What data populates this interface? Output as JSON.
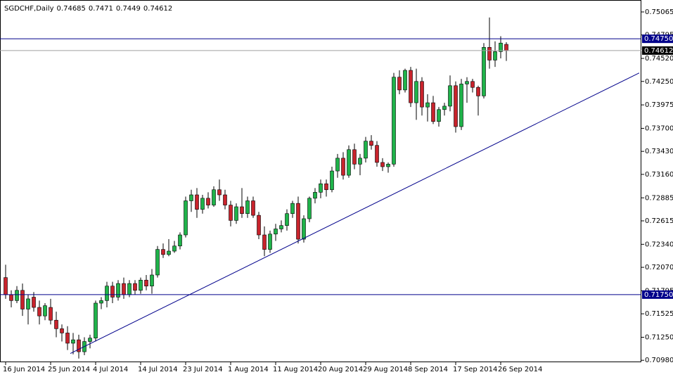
{
  "chart_data": {
    "type": "candlestick",
    "title": "SGDCHF,Daily",
    "up_color": "#1fb34a",
    "down_color": "#c8232c",
    "wick_color": "#000000",
    "categories": [
      "16 Jun 2014",
      null,
      null,
      null,
      null,
      null,
      null,
      null,
      "25 Jun 2014",
      null,
      null,
      null,
      null,
      null,
      null,
      null,
      "4 Jul 2014",
      null,
      null,
      null,
      null,
      null,
      null,
      null,
      "14 Jul 2014",
      null,
      null,
      null,
      null,
      null,
      null,
      null,
      "23 Jul 2014",
      null,
      null,
      null,
      null,
      null,
      null,
      null,
      "1 Aug 2014",
      null,
      null,
      null,
      null,
      null,
      null,
      null,
      "11 Aug 2014",
      null,
      null,
      null,
      null,
      null,
      null,
      null,
      "20 Aug 2014",
      null,
      null,
      null,
      null,
      null,
      null,
      null,
      "29 Aug 2014",
      null,
      null,
      null,
      null,
      null,
      null,
      null,
      "8 Sep 2014",
      null,
      null,
      null,
      null,
      null,
      null,
      null,
      "17 Sep 2014",
      null,
      null,
      null,
      null,
      null,
      null,
      null,
      "26 Sep 2014",
      null
    ],
    "open": [
      0.7195,
      0.7175,
      0.7168,
      0.718,
      0.7158,
      0.7172,
      0.716,
      0.715,
      0.716,
      0.7145,
      0.7135,
      0.713,
      0.7118,
      0.7122,
      0.7108,
      0.712,
      0.7124,
      0.7165,
      0.7168,
      0.7185,
      0.7172,
      0.7188,
      0.7175,
      0.7188,
      0.718,
      0.7192,
      0.7185,
      0.7198,
      0.7228,
      0.7222,
      0.7226,
      0.7232,
      0.7245,
      0.7285,
      0.7292,
      0.7275,
      0.7288,
      0.728,
      0.7298,
      0.7292,
      0.728,
      0.7262,
      0.7278,
      0.727,
      0.7285,
      0.7268,
      0.7245,
      0.7228,
      0.7246,
      0.7252,
      0.7256,
      0.727,
      0.7282,
      0.724,
      0.7264,
      0.7288,
      0.7295,
      0.7305,
      0.7298,
      0.732,
      0.7335,
      0.7315,
      0.7345,
      0.7328,
      0.7335,
      0.7355,
      0.735,
      0.733,
      0.7325,
      0.7328,
      0.743,
      0.7415,
      0.7438,
      0.74,
      0.7425,
      0.7395,
      0.74,
      0.7378,
      0.7392,
      0.7396,
      0.742,
      0.7372,
      0.7422,
      0.7425,
      0.7418,
      0.7408,
      0.7465,
      0.745,
      0.746,
      0.74685
    ],
    "high": [
      0.721,
      0.718,
      0.7185,
      0.7188,
      0.7175,
      0.7178,
      0.7168,
      0.7165,
      0.717,
      0.7155,
      0.714,
      0.7138,
      0.713,
      0.7128,
      0.7125,
      0.7128,
      0.7168,
      0.7172,
      0.719,
      0.719,
      0.7192,
      0.7195,
      0.7192,
      0.7192,
      0.7195,
      0.7198,
      0.7205,
      0.7232,
      0.7235,
      0.724,
      0.7238,
      0.7248,
      0.729,
      0.7298,
      0.73,
      0.7292,
      0.7295,
      0.7302,
      0.731,
      0.7298,
      0.7285,
      0.7282,
      0.73,
      0.729,
      0.729,
      0.7272,
      0.7255,
      0.725,
      0.7258,
      0.7262,
      0.7275,
      0.7285,
      0.729,
      0.7268,
      0.729,
      0.73,
      0.731,
      0.731,
      0.7325,
      0.734,
      0.7342,
      0.735,
      0.7352,
      0.734,
      0.736,
      0.7362,
      0.7355,
      0.7335,
      0.733,
      0.7435,
      0.7438,
      0.744,
      0.7442,
      0.744,
      0.743,
      0.741,
      0.7408,
      0.7395,
      0.74,
      0.7432,
      0.7425,
      0.7428,
      0.743,
      0.7428,
      0.742,
      0.747,
      0.75,
      0.7472,
      0.7478,
      0.7471
    ],
    "low": [
      0.717,
      0.716,
      0.7165,
      0.715,
      0.714,
      0.7155,
      0.714,
      0.7145,
      0.714,
      0.7125,
      0.712,
      0.711,
      0.7105,
      0.71,
      0.7104,
      0.7112,
      0.712,
      0.7158,
      0.716,
      0.7165,
      0.7168,
      0.717,
      0.7172,
      0.7175,
      0.7176,
      0.718,
      0.7176,
      0.7195,
      0.7218,
      0.722,
      0.7224,
      0.7228,
      0.7242,
      0.7272,
      0.7265,
      0.727,
      0.7276,
      0.7278,
      0.7285,
      0.7275,
      0.7255,
      0.7258,
      0.7265,
      0.7265,
      0.7265,
      0.724,
      0.722,
      0.7224,
      0.7238,
      0.7248,
      0.725,
      0.7265,
      0.7235,
      0.7236,
      0.726,
      0.7282,
      0.7288,
      0.729,
      0.7295,
      0.7312,
      0.731,
      0.7312,
      0.7322,
      0.7315,
      0.733,
      0.7345,
      0.7325,
      0.732,
      0.7318,
      0.7325,
      0.741,
      0.7412,
      0.7395,
      0.738,
      0.7385,
      0.7378,
      0.7375,
      0.7372,
      0.7385,
      0.739,
      0.7365,
      0.7368,
      0.74,
      0.7412,
      0.7385,
      0.7405,
      0.744,
      0.7442,
      0.7452,
      0.7449
    ],
    "close": [
      0.7175,
      0.7168,
      0.718,
      0.7158,
      0.717,
      0.716,
      0.715,
      0.7162,
      0.7145,
      0.7135,
      0.713,
      0.7118,
      0.7122,
      0.7108,
      0.712,
      0.7124,
      0.7165,
      0.7168,
      0.7185,
      0.7172,
      0.7188,
      0.7175,
      0.7188,
      0.718,
      0.7192,
      0.7185,
      0.7198,
      0.7228,
      0.7222,
      0.7226,
      0.7232,
      0.7245,
      0.7285,
      0.7292,
      0.7275,
      0.7288,
      0.728,
      0.7298,
      0.7292,
      0.728,
      0.7262,
      0.7278,
      0.727,
      0.7285,
      0.7268,
      0.7245,
      0.7228,
      0.7246,
      0.7252,
      0.7256,
      0.727,
      0.7282,
      0.724,
      0.7264,
      0.7288,
      0.7295,
      0.7305,
      0.7298,
      0.732,
      0.7335,
      0.7315,
      0.7345,
      0.7328,
      0.7335,
      0.7355,
      0.735,
      0.733,
      0.7325,
      0.7328,
      0.743,
      0.7415,
      0.7438,
      0.74,
      0.7425,
      0.7395,
      0.74,
      0.7378,
      0.7392,
      0.7396,
      0.742,
      0.7372,
      0.7422,
      0.7425,
      0.7418,
      0.7408,
      0.7465,
      0.745,
      0.746,
      0.747,
      0.74612
    ],
    "ylim": [
      0.70957,
      0.75205
    ],
    "yticks": [
      0.75065,
      0.74795,
      {
        "value": 0.7452,
        "label": "0.74520"
      },
      {
        "value": 0.7425,
        "label": "0.74250"
      },
      0.73975,
      {
        "value": 0.737,
        "label": "0.73700"
      },
      {
        "value": 0.7343,
        "label": "0.73430"
      },
      {
        "value": 0.7316,
        "label": "0.73160"
      },
      0.72885,
      0.72615,
      {
        "value": 0.7234,
        "label": "0.72340"
      },
      {
        "value": 0.7207,
        "label": "0.72070"
      },
      0.71795,
      0.71525,
      {
        "value": 0.7125,
        "label": "0.71250"
      },
      {
        "value": 0.7098,
        "label": "0.70980"
      }
    ],
    "hlines": [
      {
        "value": 0.7475,
        "label": "0.74750"
      },
      {
        "value": 0.7175,
        "label": "0.71750"
      }
    ],
    "hline_color": "#00008b",
    "trendline": {
      "from": 0.7106,
      "to": 0.7435
    },
    "price_line_color": "#a0a0a0"
  }
}
